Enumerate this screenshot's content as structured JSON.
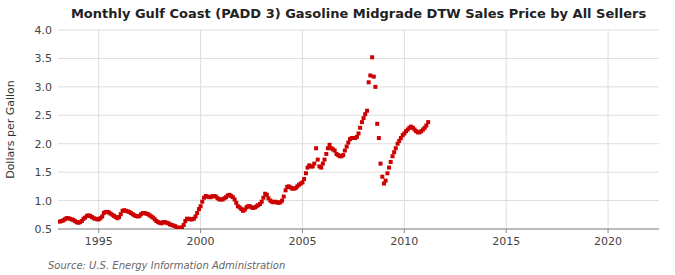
{
  "chart_data": {
    "type": "scatter",
    "title": "Monthly Gulf Coast (PADD 3) Gasoline Midgrade DTW Sales Price by All Sellers",
    "ylabel": "Dollars per Gallon",
    "source": "Source: U.S. Energy Information Administration",
    "color": "#cc0000",
    "marker": "square",
    "grid": true,
    "xlim": [
      1993.0,
      2022.5
    ],
    "ylim": [
      0.5,
      4.0
    ],
    "xticks": [
      1995,
      2000,
      2005,
      2010,
      2015,
      2020
    ],
    "yticks": [
      0.5,
      {
        "value": 1.0,
        "label": "1.0"
      },
      1.5,
      {
        "value": 2.0,
        "label": "2.0"
      },
      2.5,
      {
        "value": 3.0,
        "label": "3.0"
      },
      3.5,
      {
        "value": 4.0,
        "label": "4.0"
      }
    ],
    "x": [
      1993.08,
      1993.17,
      1993.25,
      1993.33,
      1993.42,
      1993.5,
      1993.58,
      1993.67,
      1993.75,
      1993.83,
      1993.92,
      1994.0,
      1994.08,
      1994.17,
      1994.25,
      1994.33,
      1994.42,
      1994.5,
      1994.58,
      1994.67,
      1994.75,
      1994.83,
      1994.92,
      1995.0,
      1995.08,
      1995.17,
      1995.25,
      1995.33,
      1995.42,
      1995.5,
      1995.58,
      1995.67,
      1995.75,
      1995.83,
      1995.92,
      1996.0,
      1996.08,
      1996.17,
      1996.25,
      1996.33,
      1996.42,
      1996.5,
      1996.58,
      1996.67,
      1996.75,
      1996.83,
      1996.92,
      1997.0,
      1997.08,
      1997.17,
      1997.25,
      1997.33,
      1997.42,
      1997.5,
      1997.58,
      1997.67,
      1997.75,
      1997.83,
      1997.92,
      1998.0,
      1998.08,
      1998.17,
      1998.25,
      1998.33,
      1998.42,
      1998.5,
      1998.58,
      1998.67,
      1998.75,
      1998.83,
      1998.92,
      1999.0,
      1999.08,
      1999.17,
      1999.25,
      1999.33,
      1999.42,
      1999.5,
      1999.58,
      1999.67,
      1999.75,
      1999.83,
      1999.92,
      2000.0,
      2000.08,
      2000.17,
      2000.25,
      2000.33,
      2000.42,
      2000.5,
      2000.58,
      2000.67,
      2000.75,
      2000.83,
      2000.92,
      2001.0,
      2001.08,
      2001.17,
      2001.25,
      2001.33,
      2001.42,
      2001.5,
      2001.58,
      2001.67,
      2001.75,
      2001.83,
      2001.92,
      2002.0,
      2002.08,
      2002.17,
      2002.25,
      2002.33,
      2002.42,
      2002.5,
      2002.58,
      2002.67,
      2002.75,
      2002.83,
      2002.92,
      2003.0,
      2003.08,
      2003.17,
      2003.25,
      2003.33,
      2003.42,
      2003.5,
      2003.58,
      2003.67,
      2003.75,
      2003.83,
      2003.92,
      2004.0,
      2004.08,
      2004.17,
      2004.25,
      2004.33,
      2004.42,
      2004.5,
      2004.58,
      2004.67,
      2004.75,
      2004.83,
      2004.92,
      2005.0,
      2005.08,
      2005.17,
      2005.25,
      2005.33,
      2005.42,
      2005.5,
      2005.58,
      2005.67,
      2005.75,
      2005.83,
      2005.92,
      2006.0,
      2006.08,
      2006.17,
      2006.25,
      2006.33,
      2006.42,
      2006.5,
      2006.58,
      2006.67,
      2006.75,
      2006.83,
      2006.92,
      2007.0,
      2007.08,
      2007.17,
      2007.25,
      2007.33,
      2007.42,
      2007.5,
      2007.58,
      2007.67,
      2007.75,
      2007.83,
      2007.92,
      2008.0,
      2008.08,
      2008.17,
      2008.25,
      2008.33,
      2008.42,
      2008.5,
      2008.58,
      2008.67,
      2008.75,
      2008.83,
      2008.92,
      2009.0,
      2009.08,
      2009.17,
      2009.25,
      2009.33,
      2009.42,
      2009.5,
      2009.58,
      2009.67,
      2009.75,
      2009.83,
      2009.92,
      2010.0,
      2010.08,
      2010.17,
      2010.25,
      2010.33,
      2010.42,
      2010.5,
      2010.58,
      2010.67,
      2010.75,
      2010.83,
      2010.92,
      2011.0,
      2011.08,
      2011.17
    ],
    "values": [
      0.63,
      0.64,
      0.65,
      0.67,
      0.69,
      0.69,
      0.68,
      0.67,
      0.66,
      0.64,
      0.62,
      0.61,
      0.62,
      0.64,
      0.68,
      0.7,
      0.73,
      0.74,
      0.73,
      0.71,
      0.69,
      0.68,
      0.67,
      0.67,
      0.69,
      0.72,
      0.78,
      0.8,
      0.8,
      0.79,
      0.77,
      0.75,
      0.73,
      0.71,
      0.69,
      0.71,
      0.76,
      0.82,
      0.83,
      0.82,
      0.81,
      0.8,
      0.78,
      0.76,
      0.74,
      0.73,
      0.72,
      0.73,
      0.76,
      0.78,
      0.78,
      0.77,
      0.76,
      0.74,
      0.72,
      0.7,
      0.67,
      0.64,
      0.62,
      0.61,
      0.6,
      0.62,
      0.62,
      0.61,
      0.6,
      0.58,
      0.57,
      0.56,
      0.55,
      0.53,
      0.52,
      0.52,
      0.53,
      0.57,
      0.64,
      0.68,
      0.68,
      0.67,
      0.67,
      0.68,
      0.72,
      0.78,
      0.85,
      0.9,
      0.98,
      1.05,
      1.08,
      1.07,
      1.06,
      1.06,
      1.08,
      1.08,
      1.07,
      1.04,
      1.02,
      1.02,
      1.02,
      1.04,
      1.06,
      1.09,
      1.1,
      1.08,
      1.06,
      1.02,
      0.96,
      0.9,
      0.88,
      0.85,
      0.82,
      0.84,
      0.88,
      0.9,
      0.9,
      0.88,
      0.87,
      0.88,
      0.9,
      0.92,
      0.94,
      0.98,
      1.05,
      1.12,
      1.1,
      1.04,
      1.0,
      0.98,
      0.97,
      0.98,
      0.97,
      0.96,
      0.97,
      1.0,
      1.07,
      1.18,
      1.24,
      1.25,
      1.23,
      1.21,
      1.21,
      1.22,
      1.25,
      1.28,
      1.3,
      1.32,
      1.38,
      1.48,
      1.58,
      1.62,
      1.6,
      1.6,
      1.65,
      1.92,
      1.72,
      1.6,
      1.58,
      1.65,
      1.72,
      1.82,
      1.92,
      1.98,
      1.92,
      1.9,
      1.88,
      1.82,
      1.8,
      1.78,
      1.78,
      1.8,
      1.88,
      1.95,
      2.02,
      2.08,
      2.1,
      2.1,
      2.1,
      2.12,
      2.18,
      2.28,
      2.38,
      2.45,
      2.52,
      2.58,
      3.08,
      3.2,
      3.52,
      3.18,
      3.0,
      2.35,
      2.1,
      1.65,
      1.42,
      1.3,
      1.35,
      1.48,
      1.58,
      1.68,
      1.78,
      1.85,
      1.92,
      2.0,
      2.05,
      2.1,
      2.15,
      2.18,
      2.22,
      2.25,
      2.28,
      2.3,
      2.28,
      2.25,
      2.22,
      2.2,
      2.2,
      2.22,
      2.25,
      2.28,
      2.32,
      2.38
    ]
  }
}
